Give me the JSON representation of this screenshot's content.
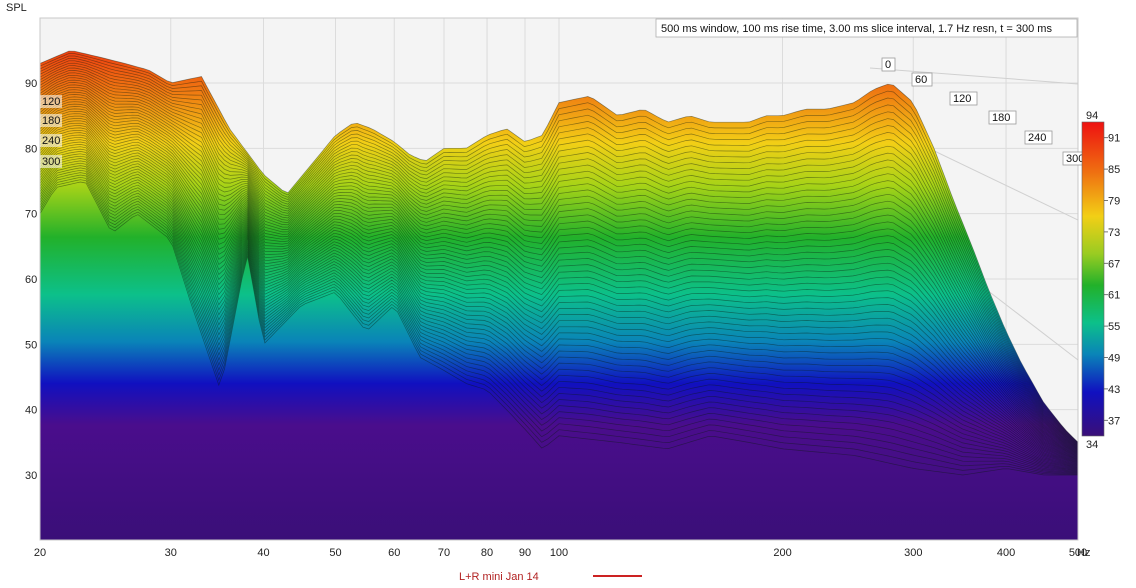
{
  "chart_data": {
    "type": "waterfall",
    "ylabel": "SPL",
    "xunit": "Hz",
    "info": "500 ms window, 100 ms rise time, 3.00 ms slice interval, 1.7 Hz resn, t = 300 ms",
    "legend": {
      "label": "L+R mini Jan 14",
      "color": "#cc2222"
    },
    "x_scale": "log",
    "xlim": [
      20,
      500
    ],
    "ylim": [
      20,
      100
    ],
    "x_ticks": [
      "20",
      "30",
      "40",
      "50",
      "60",
      "70",
      "80",
      "90",
      "100",
      "200",
      "300",
      "400",
      "500"
    ],
    "x_tick_values": [
      20,
      30,
      40,
      50,
      60,
      70,
      80,
      90,
      100,
      200,
      300,
      400,
      500
    ],
    "y_ticks": [
      "30",
      "40",
      "50",
      "60",
      "70",
      "80",
      "90"
    ],
    "y_tick_values": [
      30,
      40,
      50,
      60,
      70,
      80,
      90
    ],
    "time_axis_labels": [
      "0",
      "60",
      "120",
      "180",
      "240",
      "300"
    ],
    "time_axis_values": [
      0,
      60,
      120,
      180,
      240,
      300
    ],
    "left_time_labels": [
      "120",
      "180",
      "240",
      "300"
    ],
    "color_scale": {
      "min": 34,
      "max": 94,
      "ticks": [
        "94",
        "91",
        "85",
        "79",
        "73",
        "67",
        "61",
        "55",
        "49",
        "43",
        "37",
        "34"
      ],
      "tick_values": [
        94,
        91,
        85,
        79,
        73,
        67,
        61,
        55,
        49,
        43,
        37,
        34
      ]
    },
    "front_slice": {
      "time_ms": 0,
      "freq": [
        20,
        22,
        24,
        26,
        28,
        30,
        33,
        36,
        40,
        43,
        46,
        50,
        53,
        56,
        60,
        63,
        66,
        70,
        75,
        80,
        85,
        90,
        95,
        100,
        110,
        120,
        130,
        140,
        150,
        160,
        170,
        180,
        190,
        200,
        215,
        230,
        250,
        265,
        280,
        300,
        320,
        340,
        360,
        380,
        400,
        420,
        450,
        480,
        500
      ],
      "spl": [
        93,
        95,
        94,
        93,
        92,
        90,
        91,
        83,
        76,
        73,
        77,
        82,
        84,
        83,
        81,
        79,
        78,
        80,
        80,
        82,
        83,
        81,
        82,
        87,
        88,
        85,
        86,
        84,
        85,
        84,
        84,
        84,
        85,
        85,
        86,
        86,
        87,
        89,
        90,
        87,
        80,
        72,
        65,
        58,
        52,
        47,
        41,
        37,
        35
      ]
    },
    "back_slice": {
      "time_ms": 300,
      "freq": [
        20,
        21,
        23,
        25,
        27,
        30,
        32,
        35,
        38,
        40,
        45,
        50,
        55,
        60,
        65,
        70,
        75,
        80,
        85,
        90,
        95,
        100,
        120,
        140,
        160,
        180,
        200,
        250,
        300,
        350,
        400,
        450,
        500
      ],
      "spl": [
        70,
        74,
        75,
        67,
        70,
        66,
        56,
        43,
        64,
        50,
        56,
        58,
        52,
        56,
        48,
        46,
        44,
        43,
        40,
        37,
        34,
        36,
        35,
        34,
        36,
        35,
        34,
        33,
        31,
        30,
        31,
        30,
        30
      ]
    }
  }
}
